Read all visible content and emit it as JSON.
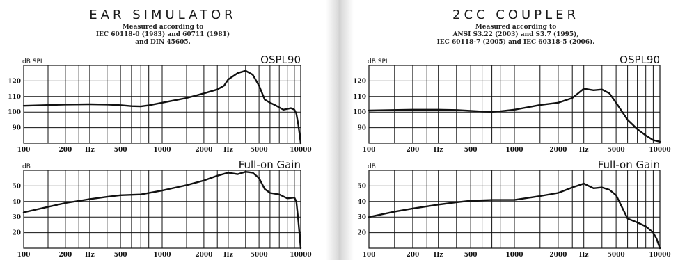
{
  "panels": [
    {
      "title": "EAR SIMULATOR",
      "description": [
        "Measured according to",
        "IEC 60118-0 (1983) and 60711 (1981)",
        "and DIN 45605."
      ]
    },
    {
      "title": "2CC COUPLER",
      "description": [
        "Measured according to",
        "ANSI S3.22 (2003) and S3.7 (1995),",
        "IEC 60118-7 (2005) and IEC 60318-5 (2006)."
      ]
    }
  ],
  "chart_data": [
    {
      "type": "line",
      "panel": "EAR SIMULATOR",
      "title": "OSPL90",
      "ylabel": "dB SPL",
      "xlabel": "Hz",
      "x_scale": "log",
      "xlim": [
        100,
        10000
      ],
      "ylim": [
        80,
        130
      ],
      "x_tick_labels": [
        "100",
        "200",
        "Hz",
        "500",
        "1000",
        "2000",
        "Hz",
        "5000",
        "10000"
      ],
      "y_ticks": [
        90,
        100,
        110,
        120
      ],
      "x": [
        100,
        200,
        300,
        400,
        500,
        600,
        700,
        800,
        1000,
        1500,
        2000,
        2500,
        2800,
        3000,
        3500,
        4000,
        4500,
        5000,
        5500,
        6000,
        6500,
        7000,
        7500,
        8000,
        8500,
        9000,
        9300,
        9600,
        10000
      ],
      "values": [
        104,
        104.8,
        105,
        104.8,
        104.4,
        103.8,
        103.6,
        104.3,
        106,
        109,
        112,
        114.5,
        117,
        121,
        125,
        126.5,
        124,
        117,
        108,
        106,
        104.5,
        103,
        101.5,
        102,
        102.5,
        101.5,
        99,
        92,
        80
      ]
    },
    {
      "type": "line",
      "panel": "EAR SIMULATOR",
      "title": "Full-on Gain",
      "ylabel": "dB",
      "xlabel": "Hz",
      "x_scale": "log",
      "xlim": [
        100,
        10000
      ],
      "ylim": [
        10,
        60
      ],
      "x_tick_labels": [
        "100",
        "200",
        "Hz",
        "500",
        "1000",
        "2000",
        "Hz",
        "5000",
        "10000"
      ],
      "y_ticks": [
        20,
        30,
        40,
        50
      ],
      "x": [
        100,
        150,
        200,
        300,
        400,
        500,
        700,
        1000,
        1500,
        2000,
        2500,
        3000,
        3500,
        4000,
        4500,
        5000,
        5500,
        6000,
        7000,
        8000,
        9000,
        9300,
        9600,
        10000
      ],
      "values": [
        33,
        36.5,
        39,
        41.5,
        43,
        44,
        44.5,
        47,
        50.5,
        53.5,
        56.5,
        58.5,
        57.5,
        59,
        58.5,
        55,
        48,
        45.5,
        44.5,
        42,
        42.5,
        40,
        28,
        10
      ]
    },
    {
      "type": "line",
      "panel": "2CC COUPLER",
      "title": "OSPL90",
      "ylabel": "dB SPL",
      "xlabel": "Hz",
      "x_scale": "log",
      "xlim": [
        100,
        10000
      ],
      "ylim": [
        80,
        130
      ],
      "x_tick_labels": [
        "100",
        "200",
        "Hz",
        "500",
        "1000",
        "2000",
        "Hz",
        "5000",
        "10000"
      ],
      "y_ticks": [
        90,
        100,
        110,
        120
      ],
      "x": [
        100,
        200,
        300,
        400,
        500,
        600,
        700,
        800,
        1000,
        1500,
        2000,
        2500,
        3000,
        3500,
        4000,
        4500,
        5000,
        6000,
        7000,
        8000,
        9000,
        10000
      ],
      "values": [
        101,
        101.5,
        101.5,
        101.3,
        100.8,
        100.3,
        100.2,
        100.5,
        101.5,
        104.5,
        106,
        109,
        115,
        114,
        114.5,
        112,
        106,
        95,
        89,
        85,
        82,
        81
      ]
    },
    {
      "type": "line",
      "panel": "2CC COUPLER",
      "title": "Full-on Gain",
      "ylabel": "dB",
      "xlabel": "Hz",
      "x_scale": "log",
      "xlim": [
        100,
        10000
      ],
      "ylim": [
        10,
        60
      ],
      "x_tick_labels": [
        "100",
        "200",
        "Hz",
        "500",
        "1000",
        "2000",
        "Hz",
        "5000",
        "10000"
      ],
      "y_ticks": [
        20,
        30,
        40,
        50
      ],
      "x": [
        100,
        150,
        200,
        300,
        400,
        500,
        700,
        1000,
        1500,
        2000,
        2500,
        3000,
        3500,
        4000,
        4500,
        5000,
        6000,
        7000,
        8000,
        9000,
        9500,
        10000
      ],
      "values": [
        30,
        33.5,
        35.5,
        38,
        39.5,
        40.5,
        41,
        41,
        43.5,
        45.5,
        49,
        51.5,
        48.5,
        49,
        47.5,
        44,
        29,
        26.5,
        24,
        20,
        16,
        10
      ]
    }
  ]
}
